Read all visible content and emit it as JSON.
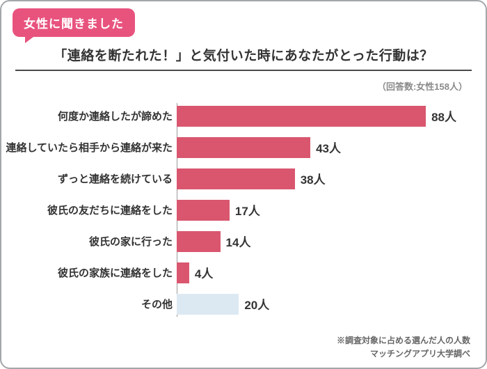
{
  "badge": {
    "label": "女性に聞きました"
  },
  "title": "「連絡を断たれた！」と気付いた時にあなたがとった行動は？",
  "response_note": "（回答数:女性158人）",
  "footnote_line1": "※調査対象に占める選んだ人の人数",
  "footnote_line2": "マッチングアプリ大学調べ",
  "colors": {
    "bar": "#d9566e",
    "other_bar": "#dde9f2",
    "badge": "#e8537e",
    "axis": "#9a9a9a"
  },
  "chart_data": {
    "type": "bar",
    "orientation": "horizontal",
    "title": "「連絡を断たれた！」と気付いた時にあなたがとった行動は？",
    "categories": [
      "何度か連絡したが諦めた",
      "連絡していたら相手から連絡が来た",
      "ずっと連絡を続けている",
      "彼氏の友だちに連絡をした",
      "彼氏の家に行った",
      "彼氏の家族に連絡をした",
      "その他"
    ],
    "values": [
      88,
      43,
      38,
      17,
      14,
      4,
      20
    ],
    "unit": "人",
    "value_labels": [
      "88人",
      "43人",
      "38人",
      "17人",
      "14人",
      "4人",
      "20人"
    ],
    "xlim": [
      0,
      90
    ],
    "highlight_other_index": 6,
    "legend": "none",
    "grid": "off"
  }
}
